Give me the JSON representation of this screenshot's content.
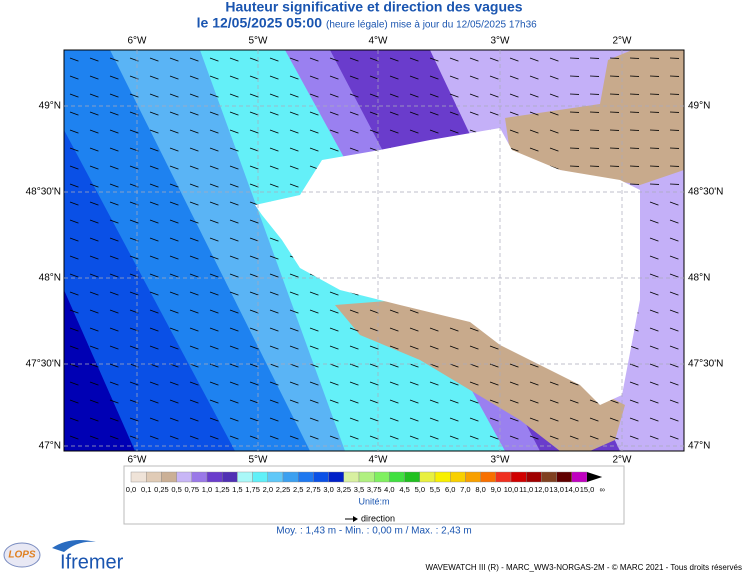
{
  "header": {
    "title": "Hauteur significative et direction des vagues",
    "date": "le 12/05/2025 05:00",
    "update": "(heure légale) mise à jour du 12/05/2025 17h36"
  },
  "map": {
    "lon_labels": [
      "6°W",
      "5°W",
      "4°W",
      "3°W",
      "2°W"
    ],
    "lat_labels": [
      "49°N",
      "48°30'N",
      "48°N",
      "47°30'N",
      "47°N"
    ]
  },
  "legend": {
    "labels": [
      "0,0",
      "0,1",
      "0,25",
      "0,5",
      "0,75",
      "1,0",
      "1,25",
      "1,5",
      "1,75",
      "2,0",
      "2,25",
      "2,5",
      "2,75",
      "3,0",
      "3,25",
      "3,5",
      "3,75",
      "4,0",
      "4,5",
      "5,0",
      "5,5",
      "6,0",
      "7,0",
      "8,0",
      "9,0",
      "10,0",
      "11,0",
      "12,0",
      "13,0",
      "14,0",
      "15,0",
      "∞"
    ],
    "colors": [
      "#efe3d8",
      "#e0cbb6",
      "#cbb096",
      "#c8b6f6",
      "#9a78e8",
      "#6a3ccc",
      "#5030b4",
      "#aaf8f8",
      "#60f0f8",
      "#60c8f8",
      "#3ca0f0",
      "#1e78f0",
      "#0a50e6",
      "#0020c8",
      "#d8f0a0",
      "#b0f080",
      "#80f060",
      "#40e040",
      "#20c020",
      "#e8f040",
      "#f8f000",
      "#f8d000",
      "#f8a000",
      "#f87000",
      "#f03020",
      "#d00000",
      "#a00000",
      "#804020",
      "#600000",
      "#c000c0",
      "#000000"
    ],
    "unit": "Unité:m",
    "direction": "direction"
  },
  "stats": "Moy. : 1,43 m  -  Min. : 0,00 m / Max. : 2,43 m",
  "footer": {
    "credits": "WAVEWATCH III (R) - MARC_WW3-NORGAS-2M - © MARC 2021 - Tous droits réservés",
    "logo1": "LOPS",
    "logo2": "Ifremer"
  }
}
